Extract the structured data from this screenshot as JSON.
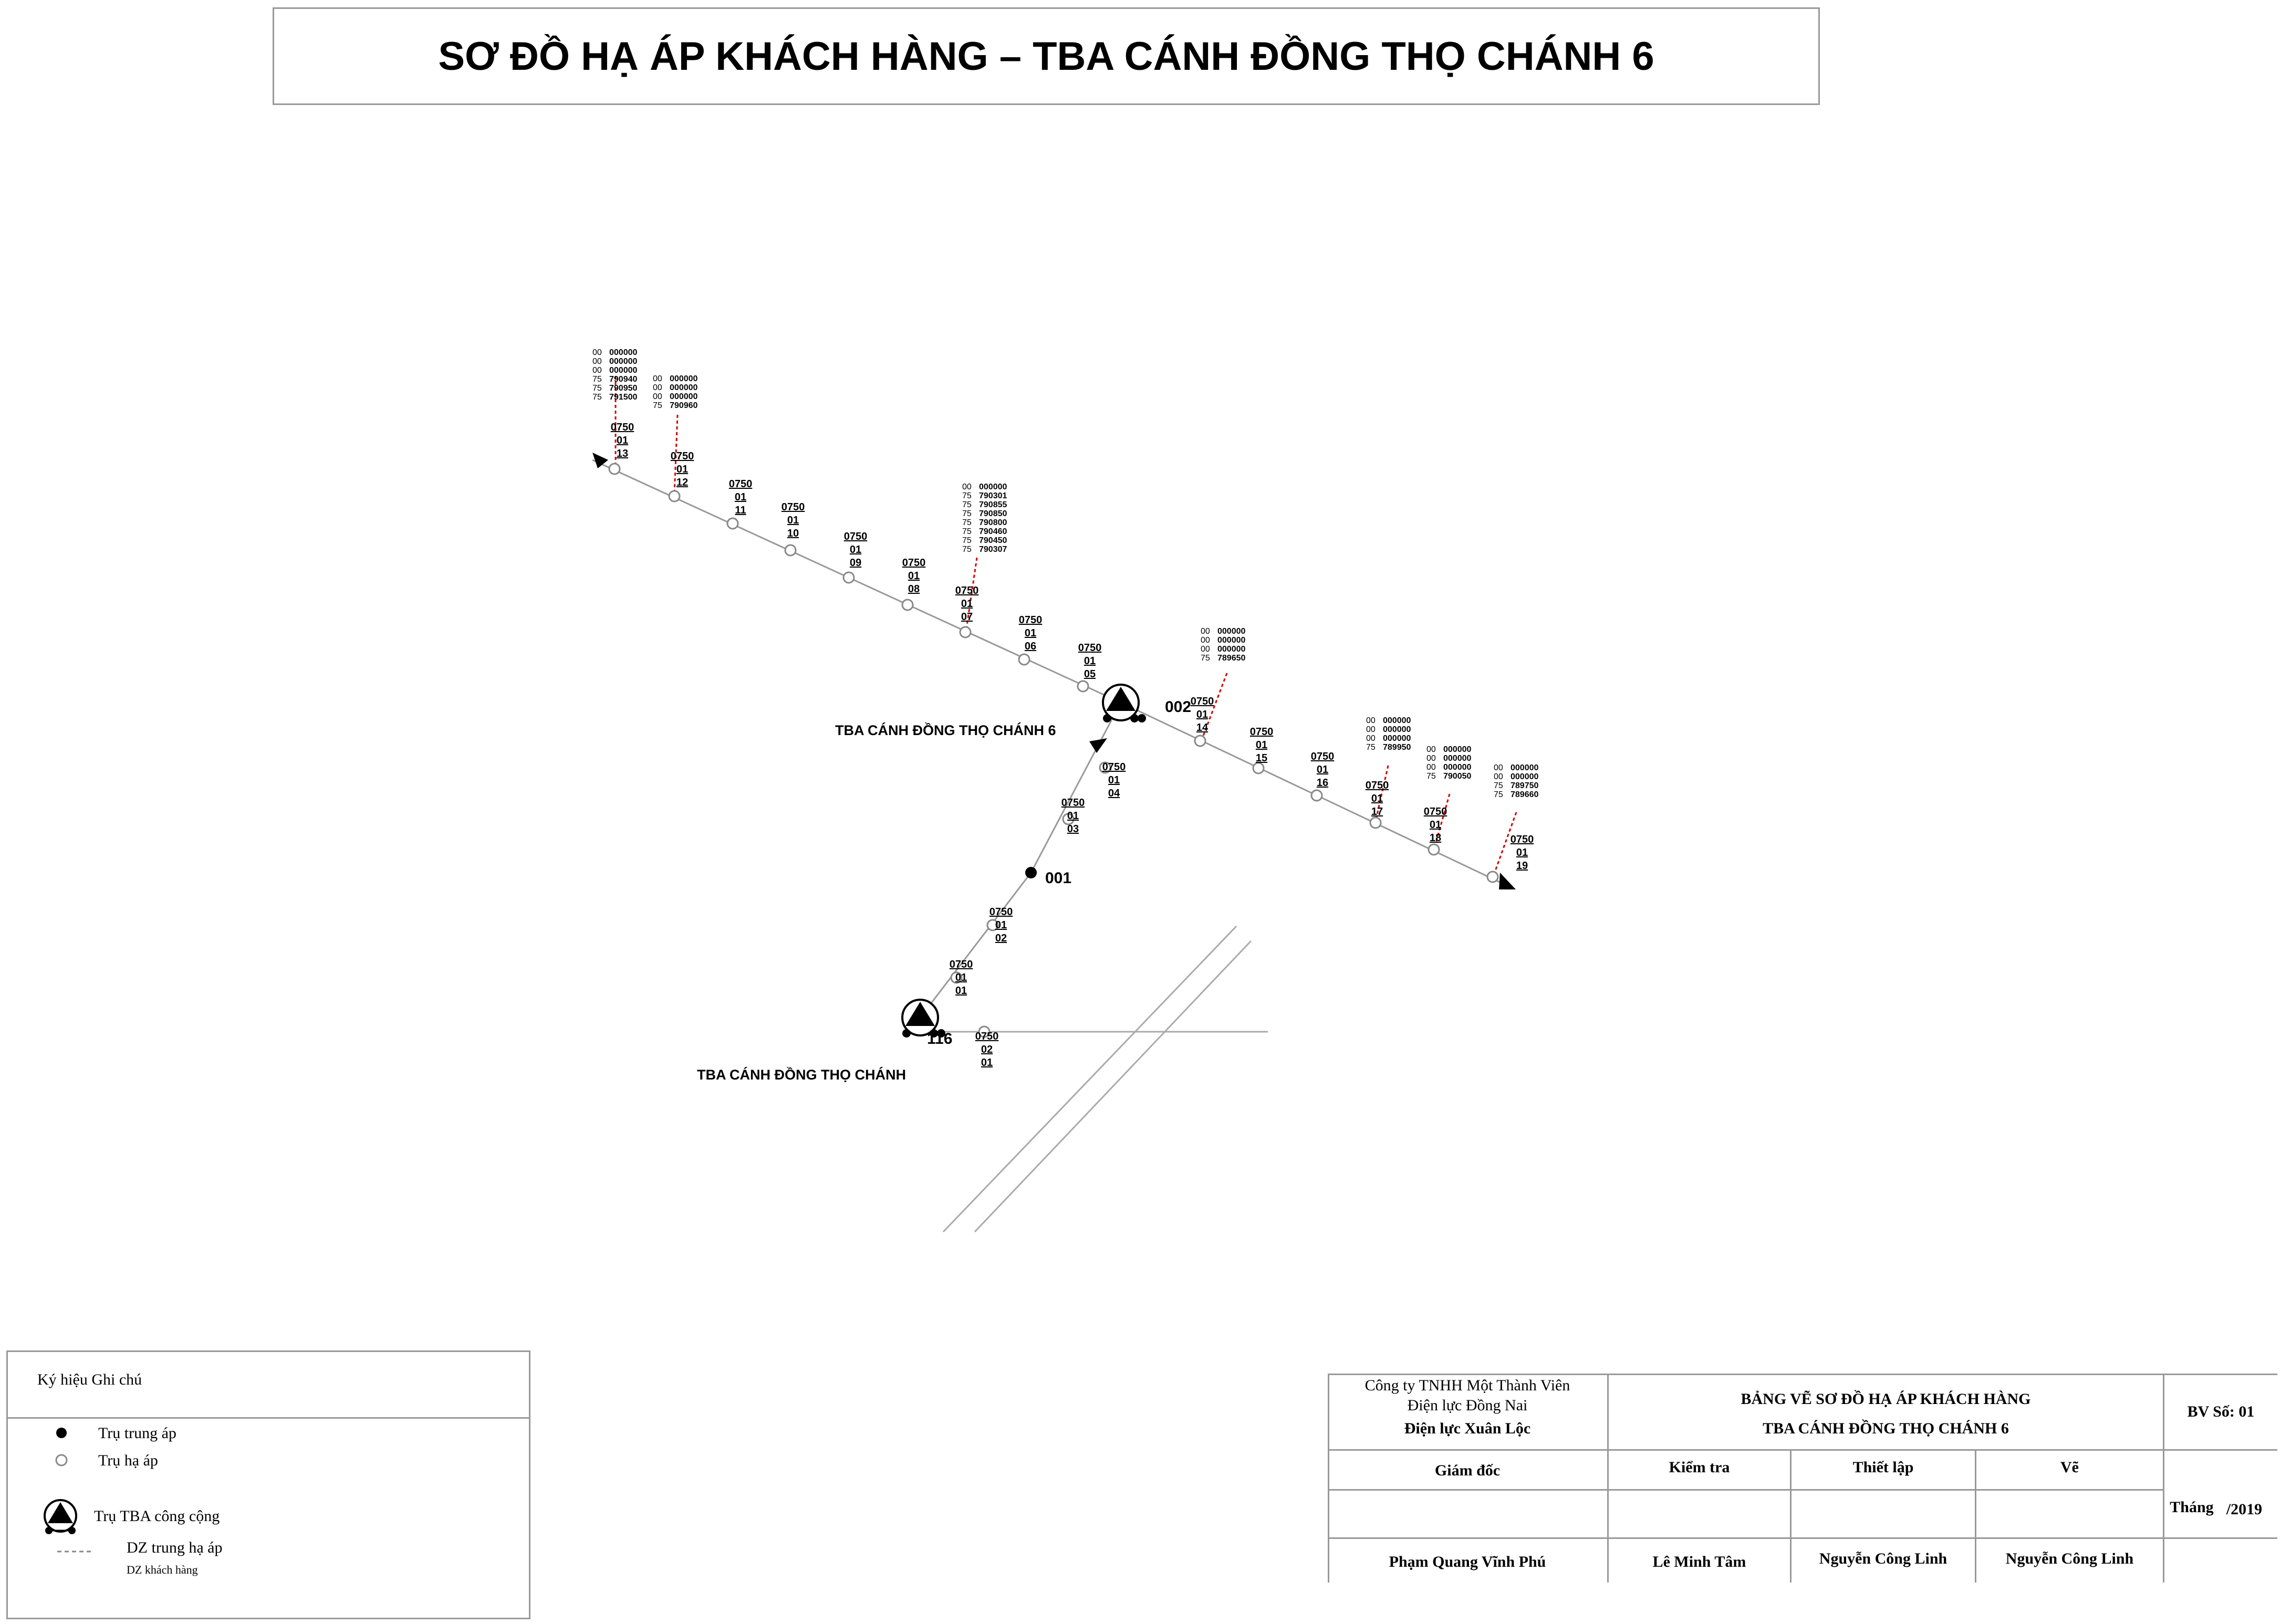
{
  "title": "SƠ ĐỒ HẠ ÁP KHÁCH HÀNG – TBA CÁNH ĐỒNG THỌ CHÁNH 6",
  "colors": {
    "line": "#999999",
    "customer_line": "#d40000",
    "pole": "#000000"
  },
  "diagram": {
    "poles": [
      {
        "id": "p13",
        "code": [
          "0750",
          "01",
          "13"
        ]
      },
      {
        "id": "p12",
        "code": [
          "0750",
          "01",
          "12"
        ]
      },
      {
        "id": "p11",
        "code": [
          "0750",
          "01",
          "11"
        ]
      },
      {
        "id": "p10",
        "code": [
          "0750",
          "01",
          "10"
        ]
      },
      {
        "id": "p09",
        "code": [
          "0750",
          "01",
          "09"
        ]
      },
      {
        "id": "p08",
        "code": [
          "0750",
          "01",
          "08"
        ]
      },
      {
        "id": "p07",
        "code": [
          "0750",
          "01",
          "07"
        ]
      },
      {
        "id": "p06",
        "code": [
          "0750",
          "01",
          "06"
        ]
      },
      {
        "id": "p05",
        "code": [
          "0750",
          "01",
          "05"
        ]
      },
      {
        "id": "p14",
        "code": [
          "0750",
          "01",
          "14"
        ]
      },
      {
        "id": "p15",
        "code": [
          "0750",
          "01",
          "15"
        ]
      },
      {
        "id": "p16",
        "code": [
          "0750",
          "01",
          "16"
        ]
      },
      {
        "id": "p17",
        "code": [
          "0750",
          "01",
          "17"
        ]
      },
      {
        "id": "p18",
        "code": [
          "0750",
          "01",
          "18"
        ]
      },
      {
        "id": "p19",
        "code": [
          "0750",
          "01",
          "19"
        ]
      },
      {
        "id": "p04",
        "code": [
          "0750",
          "01",
          "04"
        ]
      },
      {
        "id": "p03",
        "code": [
          "0750",
          "01",
          "03"
        ]
      },
      {
        "id": "p02",
        "code": [
          "0750",
          "01",
          "02"
        ]
      },
      {
        "id": "p01",
        "code": [
          "0750",
          "01",
          "01"
        ]
      },
      {
        "id": "p0201",
        "code": [
          "0750",
          "02",
          "01"
        ]
      }
    ],
    "mv_pole_label": "001",
    "substations": [
      {
        "id": "tba6",
        "number": "002",
        "name": "TBA CÁNH ĐỒNG THỌ CHÁNH 6"
      },
      {
        "id": "tba",
        "number": "116",
        "name": "TBA CÁNH ĐỒNG THỌ CHÁNH"
      }
    ],
    "customer_groups": [
      {
        "id": "c13",
        "prefix": [
          "00",
          "00",
          "00",
          "75",
          "75",
          "75"
        ],
        "ids": [
          "000000",
          "000000",
          "000000",
          "790940",
          "790950",
          "791500"
        ]
      },
      {
        "id": "c12",
        "prefix": [
          "00",
          "00",
          "00",
          "75"
        ],
        "ids": [
          "000000",
          "000000",
          "000000",
          "790960"
        ]
      },
      {
        "id": "c07",
        "prefix": [
          "00",
          "75",
          "75",
          "75",
          "75",
          "75",
          "75",
          "75"
        ],
        "ids": [
          "000000",
          "790301",
          "790855",
          "790850",
          "790800",
          "790460",
          "790450",
          "790307"
        ]
      },
      {
        "id": "c14",
        "prefix": [
          "00",
          "00",
          "00",
          "75"
        ],
        "ids": [
          "000000",
          "000000",
          "000000",
          "789650"
        ]
      },
      {
        "id": "c17",
        "prefix": [
          "00",
          "00",
          "00",
          "75"
        ],
        "ids": [
          "000000",
          "000000",
          "000000",
          "789950"
        ]
      },
      {
        "id": "c18",
        "prefix": [
          "00",
          "00",
          "00",
          "75"
        ],
        "ids": [
          "000000",
          "000000",
          "000000",
          "790050"
        ]
      },
      {
        "id": "c19",
        "prefix": [
          "00",
          "00",
          "75",
          "75"
        ],
        "ids": [
          "000000",
          "000000",
          "789750",
          "789660"
        ]
      }
    ]
  },
  "legend": {
    "header": "Ký hiệu   Ghi chú",
    "mv_pole": "Trụ trung áp",
    "lv_pole": "Trụ hạ áp",
    "substation": "Trụ TBA công cộng",
    "mv_lv_line": "DZ trung hạ áp",
    "customer_line": "DZ khách hàng"
  },
  "title_block": {
    "company_line1": "Công ty TNHH Một Thành Viên",
    "company_line2": "Điện lực Đồng Nai",
    "company_line3": "Điện lực Xuân Lộc",
    "drawing_title1": "BẢNG VẼ SƠ ĐỒ HẠ ÁP KHÁCH HÀNG",
    "drawing_title2": "TBA CÁNH ĐỒNG THỌ CHÁNH 6",
    "drawing_no": "BV Số: 01",
    "director_label": "Giám đốc",
    "check_label": "Kiểm tra",
    "setup_label": "Thiết lập",
    "draw_label": "Vẽ",
    "month_label": "Tháng",
    "year": "/2019",
    "director_name": "Phạm Quang Vĩnh Phú",
    "check_name": "Lê Minh Tâm",
    "setup_name": "Nguyễn Công Linh",
    "draw_name": "Nguyễn Công Linh"
  }
}
